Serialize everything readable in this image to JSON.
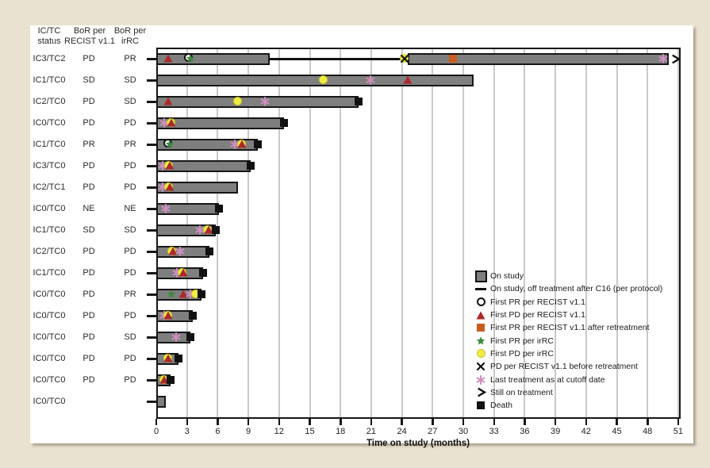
{
  "chart_data": {
    "type": "bar",
    "variant": "swimmer-plot",
    "xlabel": "Time on study (months)",
    "x_ticks": [
      0,
      3,
      6,
      9,
      12,
      15,
      18,
      21,
      24,
      27,
      30,
      33,
      36,
      39,
      42,
      45,
      48,
      51
    ],
    "xlim": [
      0,
      51.2
    ],
    "grid": true,
    "table_headers": {
      "col1": [
        "IC/TC",
        "status"
      ],
      "col2": [
        "BoR per",
        "RECIST v1.1"
      ],
      "col3": [
        "BoR per",
        "irRC"
      ]
    },
    "rows": [
      {
        "ic_tc": "IC3/TC2",
        "bor_recist": "PD",
        "bor_irrc": "PR",
        "segments": [
          {
            "type": "bar",
            "start": 0,
            "end": 11.1
          },
          {
            "type": "line",
            "start": 11.1,
            "end": 24.6
          },
          {
            "type": "bar",
            "start": 24.6,
            "end": 50.1
          }
        ],
        "markers": [
          {
            "type": "pd_recist",
            "month": 1.2
          },
          {
            "type": "pr_recist",
            "month": 3.3
          },
          {
            "type": "pr_irrc",
            "month": 3.3
          },
          {
            "type": "pd_irrc",
            "month": 24.3
          },
          {
            "type": "x_retreat",
            "month": 24.3
          },
          {
            "type": "pr_retreat",
            "month": 29.0
          },
          {
            "type": "cutoff",
            "month": 49.5
          },
          {
            "type": "arrow",
            "month": 50.7
          }
        ]
      },
      {
        "ic_tc": "IC1/TC0",
        "bor_recist": "SD",
        "bor_irrc": "SD",
        "segments": [
          {
            "type": "bar",
            "start": 0,
            "end": 31.0
          }
        ],
        "markers": [
          {
            "type": "pd_irrc",
            "month": 16.4
          },
          {
            "type": "cutoff",
            "month": 20.9
          },
          {
            "type": "pd_recist",
            "month": 24.6
          }
        ]
      },
      {
        "ic_tc": "IC2/TC0",
        "bor_recist": "PD",
        "bor_irrc": "SD",
        "segments": [
          {
            "type": "bar",
            "start": 0,
            "end": 19.8
          }
        ],
        "markers": [
          {
            "type": "pd_recist",
            "month": 1.2
          },
          {
            "type": "pd_irrc",
            "month": 8.0
          },
          {
            "type": "cutoff",
            "month": 10.6
          },
          {
            "type": "death",
            "month": 19.8
          }
        ]
      },
      {
        "ic_tc": "IC0/TC0",
        "bor_recist": "PD",
        "bor_irrc": "PD",
        "segments": [
          {
            "type": "bar",
            "start": 0,
            "end": 12.5
          }
        ],
        "markers": [
          {
            "type": "cutoff",
            "month": 0.8
          },
          {
            "type": "pd_irrc",
            "month": 1.5
          },
          {
            "type": "pd_recist",
            "month": 1.5
          },
          {
            "type": "death",
            "month": 12.5
          }
        ]
      },
      {
        "ic_tc": "IC1/TC0",
        "bor_recist": "PR",
        "bor_irrc": "PR",
        "segments": [
          {
            "type": "bar",
            "start": 0,
            "end": 9.9
          }
        ],
        "markers": [
          {
            "type": "pr_recist",
            "month": 1.3
          },
          {
            "type": "pr_irrc",
            "month": 1.3
          },
          {
            "type": "cutoff",
            "month": 7.7
          },
          {
            "type": "pd_irrc",
            "month": 8.4
          },
          {
            "type": "pd_recist",
            "month": 8.4
          },
          {
            "type": "death",
            "month": 9.9
          }
        ]
      },
      {
        "ic_tc": "IC3/TC0",
        "bor_recist": "PD",
        "bor_irrc": "PD",
        "segments": [
          {
            "type": "bar",
            "start": 0,
            "end": 9.2
          }
        ],
        "markers": [
          {
            "type": "cutoff",
            "month": 0.6
          },
          {
            "type": "pd_irrc",
            "month": 1.3
          },
          {
            "type": "pd_recist",
            "month": 1.3
          },
          {
            "type": "death",
            "month": 9.2
          }
        ]
      },
      {
        "ic_tc": "IC2/TC1",
        "bor_recist": "PD",
        "bor_irrc": "PD",
        "segments": [
          {
            "type": "bar",
            "start": 0,
            "end": 8.0
          }
        ],
        "markers": [
          {
            "type": "cutoff",
            "month": 0.6
          },
          {
            "type": "pd_irrc",
            "month": 1.3
          },
          {
            "type": "pd_recist",
            "month": 1.3
          }
        ]
      },
      {
        "ic_tc": "IC0/TC0",
        "bor_recist": "NE",
        "bor_irrc": "NE",
        "segments": [
          {
            "type": "bar",
            "start": 0,
            "end": 6.1
          }
        ],
        "markers": [
          {
            "type": "cutoff",
            "month": 0.9
          },
          {
            "type": "death",
            "month": 6.1
          }
        ]
      },
      {
        "ic_tc": "IC1/TC0",
        "bor_recist": "SD",
        "bor_irrc": "SD",
        "segments": [
          {
            "type": "bar",
            "start": 0,
            "end": 5.8
          }
        ],
        "markers": [
          {
            "type": "cutoff",
            "month": 4.3
          },
          {
            "type": "pd_irrc",
            "month": 5.1
          },
          {
            "type": "pd_recist",
            "month": 5.1
          },
          {
            "type": "death",
            "month": 5.8
          }
        ]
      },
      {
        "ic_tc": "IC2/TC0",
        "bor_recist": "PD",
        "bor_irrc": "PD",
        "segments": [
          {
            "type": "bar",
            "start": 0,
            "end": 5.2
          }
        ],
        "markers": [
          {
            "type": "pd_irrc",
            "month": 1.6
          },
          {
            "type": "pd_recist",
            "month": 1.6
          },
          {
            "type": "cutoff",
            "month": 2.3
          },
          {
            "type": "death",
            "month": 5.2
          }
        ]
      },
      {
        "ic_tc": "IC1/TC0",
        "bor_recist": "PD",
        "bor_irrc": "PD",
        "segments": [
          {
            "type": "bar",
            "start": 0,
            "end": 4.6
          }
        ],
        "markers": [
          {
            "type": "cutoff",
            "month": 2.0
          },
          {
            "type": "pd_irrc",
            "month": 2.6
          },
          {
            "type": "pd_recist",
            "month": 2.6
          },
          {
            "type": "death",
            "month": 4.6
          }
        ]
      },
      {
        "ic_tc": "IC0/TC0",
        "bor_recist": "PD",
        "bor_irrc": "PR",
        "segments": [
          {
            "type": "bar",
            "start": 0,
            "end": 4.4
          }
        ],
        "markers": [
          {
            "type": "pr_irrc",
            "month": 1.5
          },
          {
            "type": "pd_recist",
            "month": 2.6
          },
          {
            "type": "cutoff",
            "month": 3.3
          },
          {
            "type": "pd_irrc",
            "month": 3.9
          },
          {
            "type": "death",
            "month": 4.4
          }
        ]
      },
      {
        "ic_tc": "IC0/TC0",
        "bor_recist": "PD",
        "bor_irrc": "PD",
        "segments": [
          {
            "type": "bar",
            "start": 0,
            "end": 3.6
          }
        ],
        "markers": [
          {
            "type": "cutoff",
            "month": 0.8
          },
          {
            "type": "pd_irrc",
            "month": 1.2
          },
          {
            "type": "pd_recist",
            "month": 1.2
          },
          {
            "type": "death",
            "month": 3.6
          }
        ]
      },
      {
        "ic_tc": "IC0/TC0",
        "bor_recist": "PD",
        "bor_irrc": "SD",
        "segments": [
          {
            "type": "bar",
            "start": 0,
            "end": 3.3
          }
        ],
        "markers": [
          {
            "type": "cutoff",
            "month": 1.9
          },
          {
            "type": "death",
            "month": 3.3
          }
        ]
      },
      {
        "ic_tc": "IC0/TC0",
        "bor_recist": "PD",
        "bor_irrc": "PD",
        "segments": [
          {
            "type": "bar",
            "start": 0,
            "end": 2.2
          }
        ],
        "markers": [
          {
            "type": "pd_irrc",
            "month": 1.2
          },
          {
            "type": "pd_recist",
            "month": 1.2
          },
          {
            "type": "death",
            "month": 2.2
          }
        ]
      },
      {
        "ic_tc": "IC0/TC0",
        "bor_recist": "PD",
        "bor_irrc": "PD",
        "segments": [
          {
            "type": "bar",
            "start": 0,
            "end": 1.4
          }
        ],
        "markers": [
          {
            "type": "pd_irrc",
            "month": 0.8
          },
          {
            "type": "pd_recist",
            "month": 0.8
          },
          {
            "type": "death",
            "month": 1.4
          }
        ]
      },
      {
        "ic_tc": "IC0/TC0",
        "bor_recist": "",
        "bor_irrc": "",
        "segments": [
          {
            "type": "bar",
            "start": 0,
            "end": 0.9
          }
        ],
        "markers": []
      }
    ],
    "legend": [
      {
        "icon": "on_study",
        "label": "On study"
      },
      {
        "icon": "off_line",
        "label": "On study, off treatment after C16 (per protocol)"
      },
      {
        "icon": "pr_recist",
        "label": "First PR per RECIST v1.1"
      },
      {
        "icon": "pd_recist",
        "label": "First PD per RECIST v1.1"
      },
      {
        "icon": "pr_retreat",
        "label": "First PR per RECIST v1.1 after retreatment"
      },
      {
        "icon": "pr_irrc",
        "label": "First PR per irRC"
      },
      {
        "icon": "pd_irrc",
        "label": "First PD per irRC"
      },
      {
        "icon": "x_retreat",
        "label": "PD per RECIST v1.1 before retreatment"
      },
      {
        "icon": "cutoff",
        "label": "Last treatment as at cutoff date"
      },
      {
        "icon": "arrow",
        "label": "Still on treatment"
      },
      {
        "icon": "death",
        "label": "Death"
      }
    ],
    "colors": {
      "background": "#e9e2d0",
      "panel": "#ffffff",
      "bar_fill": "#7f7f7f",
      "bar_border": "#161616",
      "grid": "#c9c9c9",
      "pd_recist": "#ab2a2a",
      "pr_retreat": "#c85d1e",
      "pr_irrc": "#3d8a3f",
      "pd_irrc": "#f0ec44",
      "cutoff": "#d08fc0",
      "black": "#111111"
    }
  }
}
